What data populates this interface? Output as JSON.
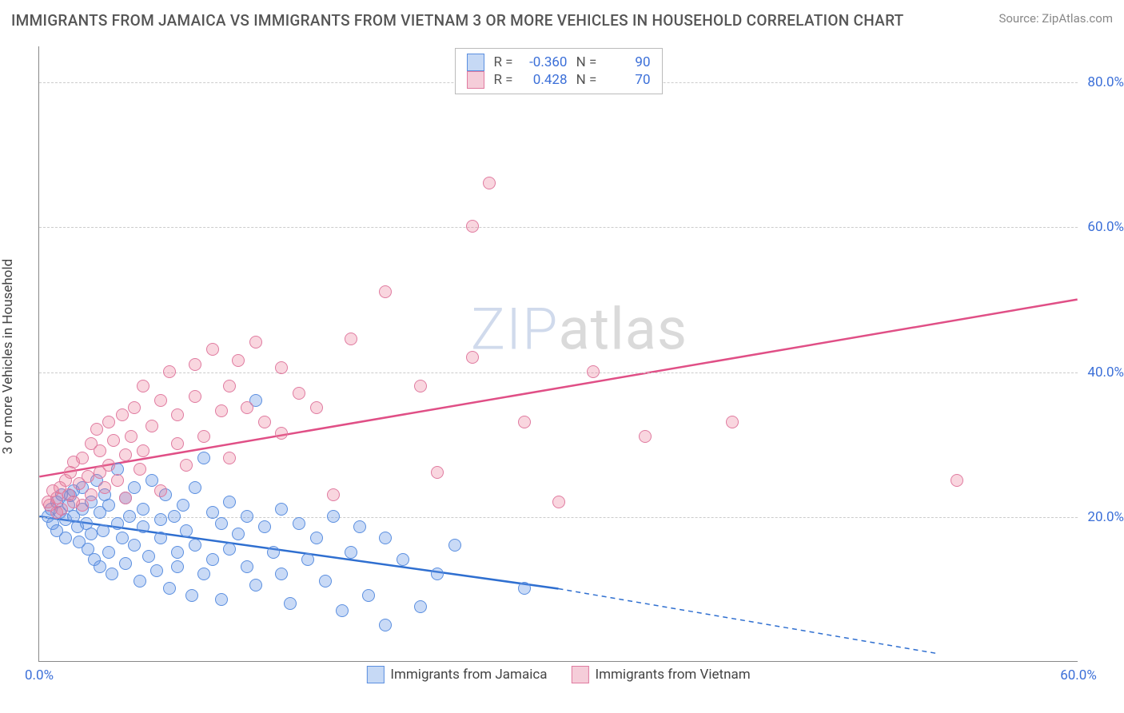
{
  "title": "IMMIGRANTS FROM JAMAICA VS IMMIGRANTS FROM VIETNAM 3 OR MORE VEHICLES IN HOUSEHOLD CORRELATION CHART",
  "source": "Source: ZipAtlas.com",
  "ylabel": "3 or more Vehicles in Household",
  "watermark_a": "ZIP",
  "watermark_b": "atlas",
  "chart": {
    "type": "scatter",
    "background_color": "#ffffff",
    "grid_color": "#cccccc",
    "axis_color": "#888888",
    "xlim": [
      0,
      60
    ],
    "ylim": [
      0,
      85
    ],
    "xticks": [
      {
        "v": 0,
        "label": "0.0%"
      },
      {
        "v": 60,
        "label": "60.0%"
      }
    ],
    "yticks": [
      {
        "v": 20,
        "label": "20.0%"
      },
      {
        "v": 40,
        "label": "40.0%"
      },
      {
        "v": 60,
        "label": "60.0%"
      },
      {
        "v": 80,
        "label": "80.0%"
      }
    ],
    "marker_radius": 8,
    "marker_stroke_width": 1.5,
    "series": [
      {
        "name": "Immigrants from Jamaica",
        "color_fill": "rgba(100,150,230,0.35)",
        "color_stroke": "#5b8fe0",
        "legend_swatch_fill": "#c6d9f5",
        "legend_swatch_border": "#5b8fe0",
        "stats": {
          "R": "-0.360",
          "N": "90"
        },
        "trend": {
          "x1": 0,
          "y1": 20,
          "x2_solid": 30,
          "y2_solid": 10,
          "x2_dash": 52,
          "y2_dash": 1,
          "width": 2.5,
          "color": "#2f6fd0"
        },
        "points": [
          [
            0.5,
            20
          ],
          [
            0.7,
            21
          ],
          [
            0.8,
            19
          ],
          [
            1,
            22
          ],
          [
            1,
            18
          ],
          [
            1.2,
            20.5
          ],
          [
            1.3,
            23
          ],
          [
            1.5,
            19.5
          ],
          [
            1.5,
            17
          ],
          [
            1.7,
            21.5
          ],
          [
            1.8,
            22.8
          ],
          [
            2,
            20
          ],
          [
            2,
            23.5
          ],
          [
            2.2,
            18.5
          ],
          [
            2.3,
            16.5
          ],
          [
            2.5,
            24
          ],
          [
            2.5,
            21
          ],
          [
            2.7,
            19
          ],
          [
            2.8,
            15.5
          ],
          [
            3,
            22
          ],
          [
            3,
            17.5
          ],
          [
            3.2,
            14
          ],
          [
            3.3,
            25
          ],
          [
            3.5,
            20.5
          ],
          [
            3.5,
            13
          ],
          [
            3.7,
            18
          ],
          [
            3.8,
            23
          ],
          [
            4,
            15
          ],
          [
            4,
            21.5
          ],
          [
            4.2,
            12
          ],
          [
            4.5,
            19
          ],
          [
            4.5,
            26.5
          ],
          [
            4.8,
            17
          ],
          [
            5,
            22.5
          ],
          [
            5,
            13.5
          ],
          [
            5.2,
            20
          ],
          [
            5.5,
            16
          ],
          [
            5.5,
            24
          ],
          [
            5.8,
            11
          ],
          [
            6,
            18.5
          ],
          [
            6,
            21
          ],
          [
            6.3,
            14.5
          ],
          [
            6.5,
            25
          ],
          [
            6.8,
            12.5
          ],
          [
            7,
            19.5
          ],
          [
            7,
            17
          ],
          [
            7.3,
            23
          ],
          [
            7.5,
            10
          ],
          [
            7.8,
            20
          ],
          [
            8,
            15
          ],
          [
            8,
            13
          ],
          [
            8.3,
            21.5
          ],
          [
            8.5,
            18
          ],
          [
            8.8,
            9
          ],
          [
            9,
            24
          ],
          [
            9,
            16
          ],
          [
            9.5,
            28
          ],
          [
            9.5,
            12
          ],
          [
            10,
            20.5
          ],
          [
            10,
            14
          ],
          [
            10.5,
            19
          ],
          [
            10.5,
            8.5
          ],
          [
            11,
            22
          ],
          [
            11,
            15.5
          ],
          [
            11.5,
            17.5
          ],
          [
            12,
            13
          ],
          [
            12,
            20
          ],
          [
            12.5,
            36
          ],
          [
            12.5,
            10.5
          ],
          [
            13,
            18.5
          ],
          [
            13.5,
            15
          ],
          [
            14,
            21
          ],
          [
            14,
            12
          ],
          [
            14.5,
            8
          ],
          [
            15,
            19
          ],
          [
            15.5,
            14
          ],
          [
            16,
            17
          ],
          [
            16.5,
            11
          ],
          [
            17,
            20
          ],
          [
            17.5,
            7
          ],
          [
            18,
            15
          ],
          [
            18.5,
            18.5
          ],
          [
            19,
            9
          ],
          [
            20,
            17
          ],
          [
            20,
            5
          ],
          [
            21,
            14
          ],
          [
            22,
            7.5
          ],
          [
            23,
            12
          ],
          [
            24,
            16
          ],
          [
            28,
            10
          ]
        ]
      },
      {
        "name": "Immigrants from Vietnam",
        "color_fill": "rgba(235,120,150,0.30)",
        "color_stroke": "#e07ba0",
        "legend_swatch_fill": "#f5cdd9",
        "legend_swatch_border": "#e07ba0",
        "stats": {
          "R": "0.428",
          "N": "70"
        },
        "trend": {
          "x1": 0,
          "y1": 25.5,
          "x2_solid": 60,
          "y2_solid": 50,
          "x2_dash": 60,
          "y2_dash": 50,
          "width": 2.5,
          "color": "#e04f86"
        },
        "points": [
          [
            0.5,
            22
          ],
          [
            0.6,
            21.5
          ],
          [
            0.8,
            23.5
          ],
          [
            1,
            22.5
          ],
          [
            1,
            20.5
          ],
          [
            1.2,
            24
          ],
          [
            1.3,
            21
          ],
          [
            1.5,
            25
          ],
          [
            1.7,
            23
          ],
          [
            1.8,
            26
          ],
          [
            2,
            22
          ],
          [
            2,
            27.5
          ],
          [
            2.3,
            24.5
          ],
          [
            2.5,
            21.5
          ],
          [
            2.5,
            28
          ],
          [
            2.8,
            25.5
          ],
          [
            3,
            30
          ],
          [
            3,
            23
          ],
          [
            3.3,
            32
          ],
          [
            3.5,
            26
          ],
          [
            3.5,
            29
          ],
          [
            3.8,
            24
          ],
          [
            4,
            33
          ],
          [
            4,
            27
          ],
          [
            4.3,
            30.5
          ],
          [
            4.5,
            25
          ],
          [
            4.8,
            34
          ],
          [
            5,
            28.5
          ],
          [
            5,
            22.5
          ],
          [
            5.3,
            31
          ],
          [
            5.5,
            35
          ],
          [
            5.8,
            26.5
          ],
          [
            6,
            38
          ],
          [
            6,
            29
          ],
          [
            6.5,
            32.5
          ],
          [
            7,
            36
          ],
          [
            7,
            23.5
          ],
          [
            7.5,
            40
          ],
          [
            8,
            30
          ],
          [
            8,
            34
          ],
          [
            8.5,
            27
          ],
          [
            9,
            41
          ],
          [
            9,
            36.5
          ],
          [
            9.5,
            31
          ],
          [
            10,
            43
          ],
          [
            10.5,
            34.5
          ],
          [
            11,
            38
          ],
          [
            11,
            28
          ],
          [
            11.5,
            41.5
          ],
          [
            12,
            35
          ],
          [
            12.5,
            44
          ],
          [
            13,
            33
          ],
          [
            14,
            40.5
          ],
          [
            14,
            31.5
          ],
          [
            15,
            37
          ],
          [
            16,
            35
          ],
          [
            17,
            23
          ],
          [
            18,
            44.5
          ],
          [
            20,
            51
          ],
          [
            22,
            38
          ],
          [
            23,
            26
          ],
          [
            25,
            60
          ],
          [
            25,
            42
          ],
          [
            26,
            66
          ],
          [
            28,
            33
          ],
          [
            30,
            22
          ],
          [
            32,
            40
          ],
          [
            35,
            31
          ],
          [
            40,
            33
          ],
          [
            53,
            25
          ]
        ]
      }
    ]
  }
}
